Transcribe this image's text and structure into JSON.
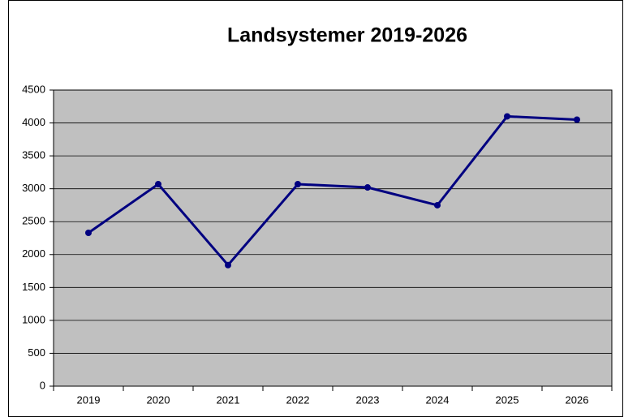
{
  "chart_data": {
    "type": "line",
    "title": "Landsystemer 2019-2026",
    "categories": [
      "2019",
      "2020",
      "2021",
      "2022",
      "2023",
      "2024",
      "2025",
      "2026"
    ],
    "series": [
      {
        "name": "Landsystemer",
        "color": "#000080",
        "values": [
          2330,
          3070,
          1840,
          3070,
          3020,
          2750,
          4100,
          4050
        ]
      }
    ],
    "ylim": [
      0,
      4500
    ],
    "yticks": [
      0,
      500,
      1000,
      1500,
      2000,
      2500,
      3000,
      3500,
      4000,
      4500
    ],
    "grid": true,
    "background": "#c0c0c0"
  }
}
